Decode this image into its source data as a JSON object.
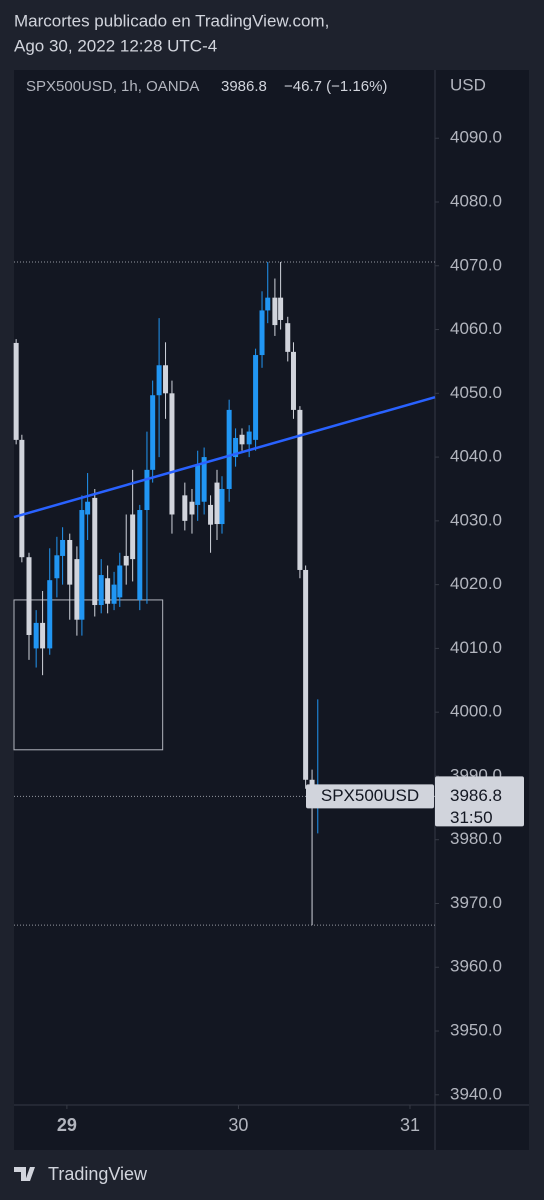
{
  "header": {
    "author_line": "Marcortes publicado en TradingView.com,",
    "date_line": "Ago 30, 2022 12:28 UTC-4"
  },
  "chart_data": {
    "type": "candlestick",
    "legend_symbol": "SPX500USD, 1h, OANDA",
    "change": "−46.7 (−1.16%)",
    "price_label": "SPX500USD",
    "countdown": "31:50",
    "axis_unit": "USD",
    "up_color": "#2196f3",
    "down_color": "#d1d4dc",
    "x": [
      -7.1,
      -6.3,
      -5.3,
      -4.3,
      -3.4,
      -2.4,
      -1.4,
      -0.6,
      0.4,
      1.4,
      2.1,
      2.9,
      3.9,
      4.8,
      5.7,
      6.6,
      7.4,
      8.3,
      9.2,
      10.2,
      11.2,
      12.0,
      12.9,
      13.8,
      14.7,
      16.5,
      17.5,
      18.3,
      19.2,
      20.1,
      21.0,
      21.7,
      22.7,
      23.6,
      24.5,
      25.5,
      26.4,
      27.3,
      28.1,
      29.1,
      29.9,
      30.9,
      31.7,
      32.6,
      33.4,
      34.3,
      35.1
    ],
    "open": [
      4057.9,
      4042.7,
      4024.3,
      4010.0,
      4014.0,
      4010.0,
      4021.0,
      4024.5,
      4027.0,
      4024.0,
      4014.5,
      4031.0,
      4033.6,
      4016.8,
      4021.0,
      4017.0,
      4018.0,
      4024.5,
      4031.0,
      4017.6,
      4031.7,
      4038.0,
      4049.7,
      4054.4,
      4050.0,
      4034.0,
      4033.0,
      4032.5,
      4033.0,
      4032.5,
      4036.0,
      4029.5,
      4035.0,
      4040.0,
      4043.5,
      4042.0,
      4042.7,
      4056.0,
      4063.0,
      4065.0,
      4065.0,
      4061.0,
      4056.5,
      4047.4,
      4022.3,
      3989.4,
      3985.3
    ],
    "high": [
      4058.5,
      4043.5,
      4025.0,
      4016.0,
      4019.0,
      4025.7,
      4027.5,
      4029.0,
      4028.0,
      4026.0,
      4034.0,
      4037.5,
      4035.0,
      4024.0,
      4023.0,
      4022.0,
      4025.0,
      4031.0,
      4038.0,
      4032.5,
      4044.0,
      4052.0,
      4061.8,
      4058.0,
      4052.0,
      4036.0,
      4035.0,
      4041.0,
      4041.5,
      4034.0,
      4038.0,
      4037.0,
      4049.0,
      4044.5,
      4044.5,
      4045.0,
      4057.0,
      4066.0,
      4070.6,
      4068.0,
      4070.6,
      4062.0,
      4058.0,
      4048.0,
      4023.0,
      3991.0,
      4002.0
    ],
    "low": [
      4042.0,
      4023.5,
      4008.2,
      4007.0,
      4005.8,
      4009.0,
      4018.0,
      4020.0,
      4014.5,
      4012.0,
      4012.0,
      4027.0,
      4015.0,
      4015.5,
      4015.5,
      4016.0,
      4016.5,
      4020.0,
      4020.5,
      4016.0,
      4017.0,
      4036.0,
      4040.0,
      4046.0,
      4028.0,
      4028.5,
      4028.0,
      4030.0,
      4031.0,
      4025.0,
      4027.0,
      4028.0,
      4033.0,
      4038.5,
      4041.0,
      4040.0,
      4041.0,
      4054.0,
      4061.0,
      4059.0,
      4060.0,
      4055.0,
      4046.0,
      4021.0,
      3988.0,
      3966.6,
      3981.0
    ],
    "close": [
      4042.7,
      4024.3,
      4012.1,
      4014.0,
      4010.0,
      4020.7,
      4024.6,
      4027.0,
      4020.0,
      4014.5,
      4031.7,
      4033.0,
      4016.8,
      4021.5,
      4017.0,
      4020.0,
      4023.0,
      4023.0,
      4024.0,
      4031.7,
      4038.0,
      4049.7,
      4054.4,
      4050.0,
      4031.0,
      4030.0,
      4031.0,
      4038.7,
      4040.0,
      4029.4,
      4029.5,
      4035.0,
      4047.4,
      4043.0,
      4042.0,
      4044.0,
      4056.0,
      4063.0,
      4065.0,
      4060.7,
      4061.5,
      4056.5,
      4047.4,
      4022.3,
      3989.4,
      3985.3,
      3986.8
    ],
    "hlines": [
      4070.6,
      3986.8,
      3966.6
    ],
    "trendline": {
      "x": [
        -7.4,
        51.5
      ],
      "y": [
        4030.6,
        4049.4
      ],
      "color": "#2962ff"
    },
    "box": {
      "x": [
        -7.4,
        13.4
      ],
      "y": [
        4017.6,
        3994.1
      ]
    },
    "xlim": [
      -7.4,
      51.5
    ],
    "ylim": [
      3938.4,
      4100.7
    ],
    "xticks": [
      {
        "value": 0,
        "label": "29"
      },
      {
        "value": 24,
        "label": "30"
      },
      {
        "value": 48,
        "label": "31"
      }
    ],
    "yticks": [
      {
        "value": 3940,
        "label": "3940.0"
      },
      {
        "value": 3950,
        "label": "3950.0"
      },
      {
        "value": 3960,
        "label": "3960.0"
      },
      {
        "value": 3970,
        "label": "3970.0"
      },
      {
        "value": 3980,
        "label": "3980.0"
      },
      {
        "value": 3990,
        "label": "3990.0"
      },
      {
        "value": 4000,
        "label": "4000.0"
      },
      {
        "value": 4010,
        "label": "4010.0"
      },
      {
        "value": 4020,
        "label": "4020.0"
      },
      {
        "value": 4030,
        "label": "4030.0"
      },
      {
        "value": 4040,
        "label": "4040.0"
      },
      {
        "value": 4050,
        "label": "4050.0"
      },
      {
        "value": 4060,
        "label": "4060.0"
      },
      {
        "value": 4070,
        "label": "4070.0"
      },
      {
        "value": 4080,
        "label": "4080.0"
      },
      {
        "value": 4090,
        "label": "4090.0"
      }
    ]
  },
  "footer": {
    "brand": "TradingView"
  }
}
